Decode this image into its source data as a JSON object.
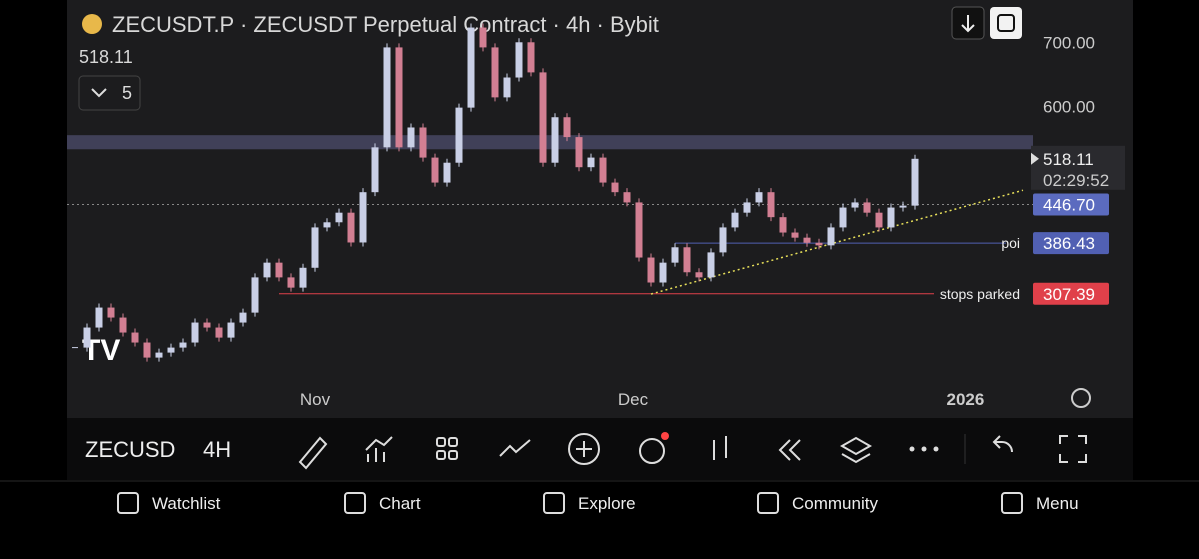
{
  "header": {
    "title": "ZECUSDT.P · ZECUSDT Perpetual Contract · 4h · Bybit",
    "last": "518.11",
    "indicators": "5"
  },
  "chart": {
    "type": "candlestick",
    "up_color": "#c9cfe6",
    "down_color": "#d27f93",
    "closes": [
      223.4,
      254.7,
      285.9,
      270.3,
      246.9,
      231.3,
      207.8,
      215.6,
      223.4,
      231.3,
      262.5,
      254.7,
      239,
      262.5,
      278,
      333,
      356,
      333,
      317,
      348,
      411,
      419,
      434,
      387.5,
      466,
      536,
      692,
      536,
      567,
      520,
      481,
      512,
      598,
      723,
      692,
      614,
      645,
      700,
      653,
      512,
      583,
      552,
      505,
      520,
      481,
      466,
      450,
      364,
      325,
      356,
      380,
      341,
      333,
      372,
      411,
      434,
      450,
      466,
      427,
      403,
      395,
      387,
      383,
      411,
      442,
      450,
      434,
      411,
      442,
      445,
      518.11
    ],
    "ylim": [
      113.5,
      766
    ],
    "yticks": [
      {
        "value": 700,
        "label": "700.00"
      },
      {
        "value": 600,
        "label": "600.00"
      }
    ],
    "zone": [
      533,
      555
    ],
    "trendline": {
      "x": [
        48,
        79
      ],
      "y": [
        307,
        469
      ]
    },
    "last_price": 518.11,
    "countdown": "02:29:52",
    "levels": [
      {
        "value": 446.7,
        "label": "446.70",
        "start": 0,
        "color": "#5b6bbf",
        "style": "dotted"
      },
      {
        "value": 386.43,
        "label": "386.43",
        "name": "poi",
        "start": 50,
        "color": "#5160b3",
        "style": "solid"
      },
      {
        "value": 307.39,
        "label": "307.39",
        "name": "stops parked",
        "start": 17,
        "color": "#e0404a",
        "style": "solid"
      }
    ],
    "x_labels": [
      {
        "label": "Nov",
        "index": 20
      },
      {
        "label": "Dec",
        "index": 46.5
      },
      {
        "label": "2026",
        "index": 74.2
      }
    ]
  },
  "toolbar": {
    "symbol": "ZECUSD",
    "interval": "4H"
  },
  "nav": [
    "Watchlist",
    "Chart",
    "Explore",
    "Community",
    "Menu"
  ]
}
